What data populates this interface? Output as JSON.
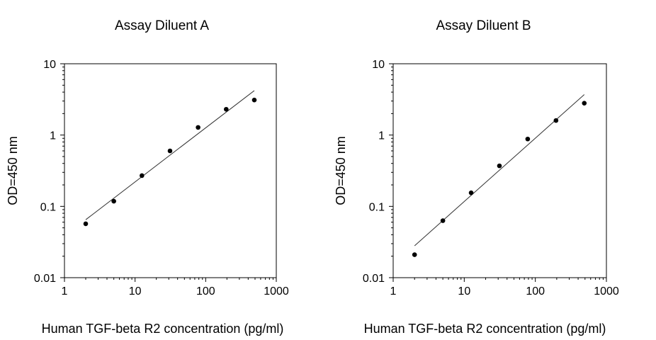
{
  "chart_data": [
    {
      "type": "scatter",
      "title": "Assay Diluent A",
      "xlabel": "Human TGF-beta R2 concentration (pg/ml)",
      "ylabel": "OD=450 nm",
      "xscale": "log",
      "yscale": "log",
      "xlim": [
        1,
        1000
      ],
      "ylim": [
        0.01,
        10
      ],
      "xticks": [
        "1",
        "10",
        "100",
        "1000"
      ],
      "yticks": [
        "0.01",
        "0.1",
        "1",
        "10"
      ],
      "grid": false,
      "series": [
        {
          "x": [
            2,
            5,
            12.5,
            31.25,
            78.1,
            195.3,
            488.3
          ],
          "y": [
            0.057,
            0.118,
            0.27,
            0.6,
            1.28,
            2.3,
            3.1
          ]
        }
      ],
      "fit_line": {
        "x": [
          2,
          488.3
        ],
        "y": [
          0.065,
          4.2
        ]
      }
    },
    {
      "type": "scatter",
      "title": "Assay Diluent B",
      "xlabel": "Human TGF-beta R2 concentration (pg/ml)",
      "ylabel": "OD=450 nm",
      "xscale": "log",
      "yscale": "log",
      "xlim": [
        1,
        1000
      ],
      "ylim": [
        0.01,
        10
      ],
      "xticks": [
        "1",
        "10",
        "100",
        "1000"
      ],
      "yticks": [
        "0.01",
        "0.1",
        "1",
        "10"
      ],
      "grid": false,
      "series": [
        {
          "x": [
            2,
            5,
            12.5,
            31.25,
            78.1,
            195.3,
            488.3
          ],
          "y": [
            0.021,
            0.063,
            0.155,
            0.37,
            0.88,
            1.6,
            2.8
          ]
        }
      ],
      "fit_line": {
        "x": [
          2,
          488.3
        ],
        "y": [
          0.028,
          3.7
        ]
      }
    }
  ]
}
